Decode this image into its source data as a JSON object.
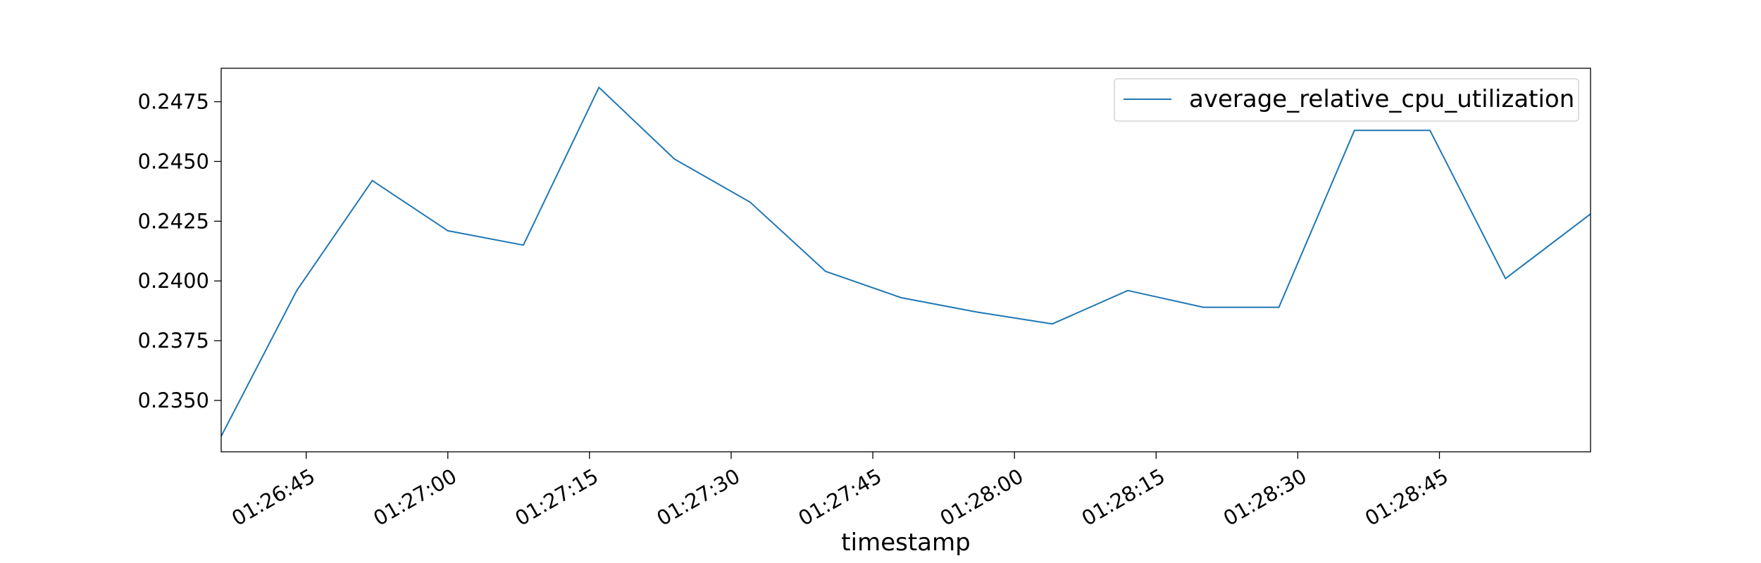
{
  "chart_data": {
    "type": "line",
    "title": "",
    "xlabel": "timestamp",
    "ylabel": "",
    "x_tick_labels": [
      "01:26:45",
      "01:27:00",
      "01:27:15",
      "01:27:30",
      "01:27:45",
      "01:28:00",
      "01:28:15",
      "01:28:30",
      "01:28:45"
    ],
    "y_tick_labels": [
      "0.2350",
      "0.2375",
      "0.2400",
      "0.2425",
      "0.2450",
      "0.2475"
    ],
    "xlim": [
      "01:26:36",
      "01:29:01"
    ],
    "ylim": [
      0.23285,
      0.2489
    ],
    "grid": false,
    "legend_position": "top-right",
    "colors": {
      "series": "#1f77b4"
    },
    "series": [
      {
        "name": "average_relative_cpu_utilization",
        "x": [
          "01:26:36",
          "01:26:44",
          "01:26:52",
          "01:27:00",
          "01:27:08",
          "01:27:16",
          "01:27:24",
          "01:27:32",
          "01:27:40",
          "01:27:48",
          "01:27:56",
          "01:28:04",
          "01:28:12",
          "01:28:20",
          "01:28:28",
          "01:28:36",
          "01:28:44",
          "01:28:52",
          "01:29:01"
        ],
        "values": [
          0.2335,
          0.2396,
          0.2442,
          0.2421,
          0.2415,
          0.2481,
          0.2451,
          0.2433,
          0.2404,
          0.2393,
          0.2387,
          0.2382,
          0.2396,
          0.2389,
          0.2389,
          0.2463,
          0.2463,
          0.2401,
          0.2428
        ]
      }
    ]
  }
}
